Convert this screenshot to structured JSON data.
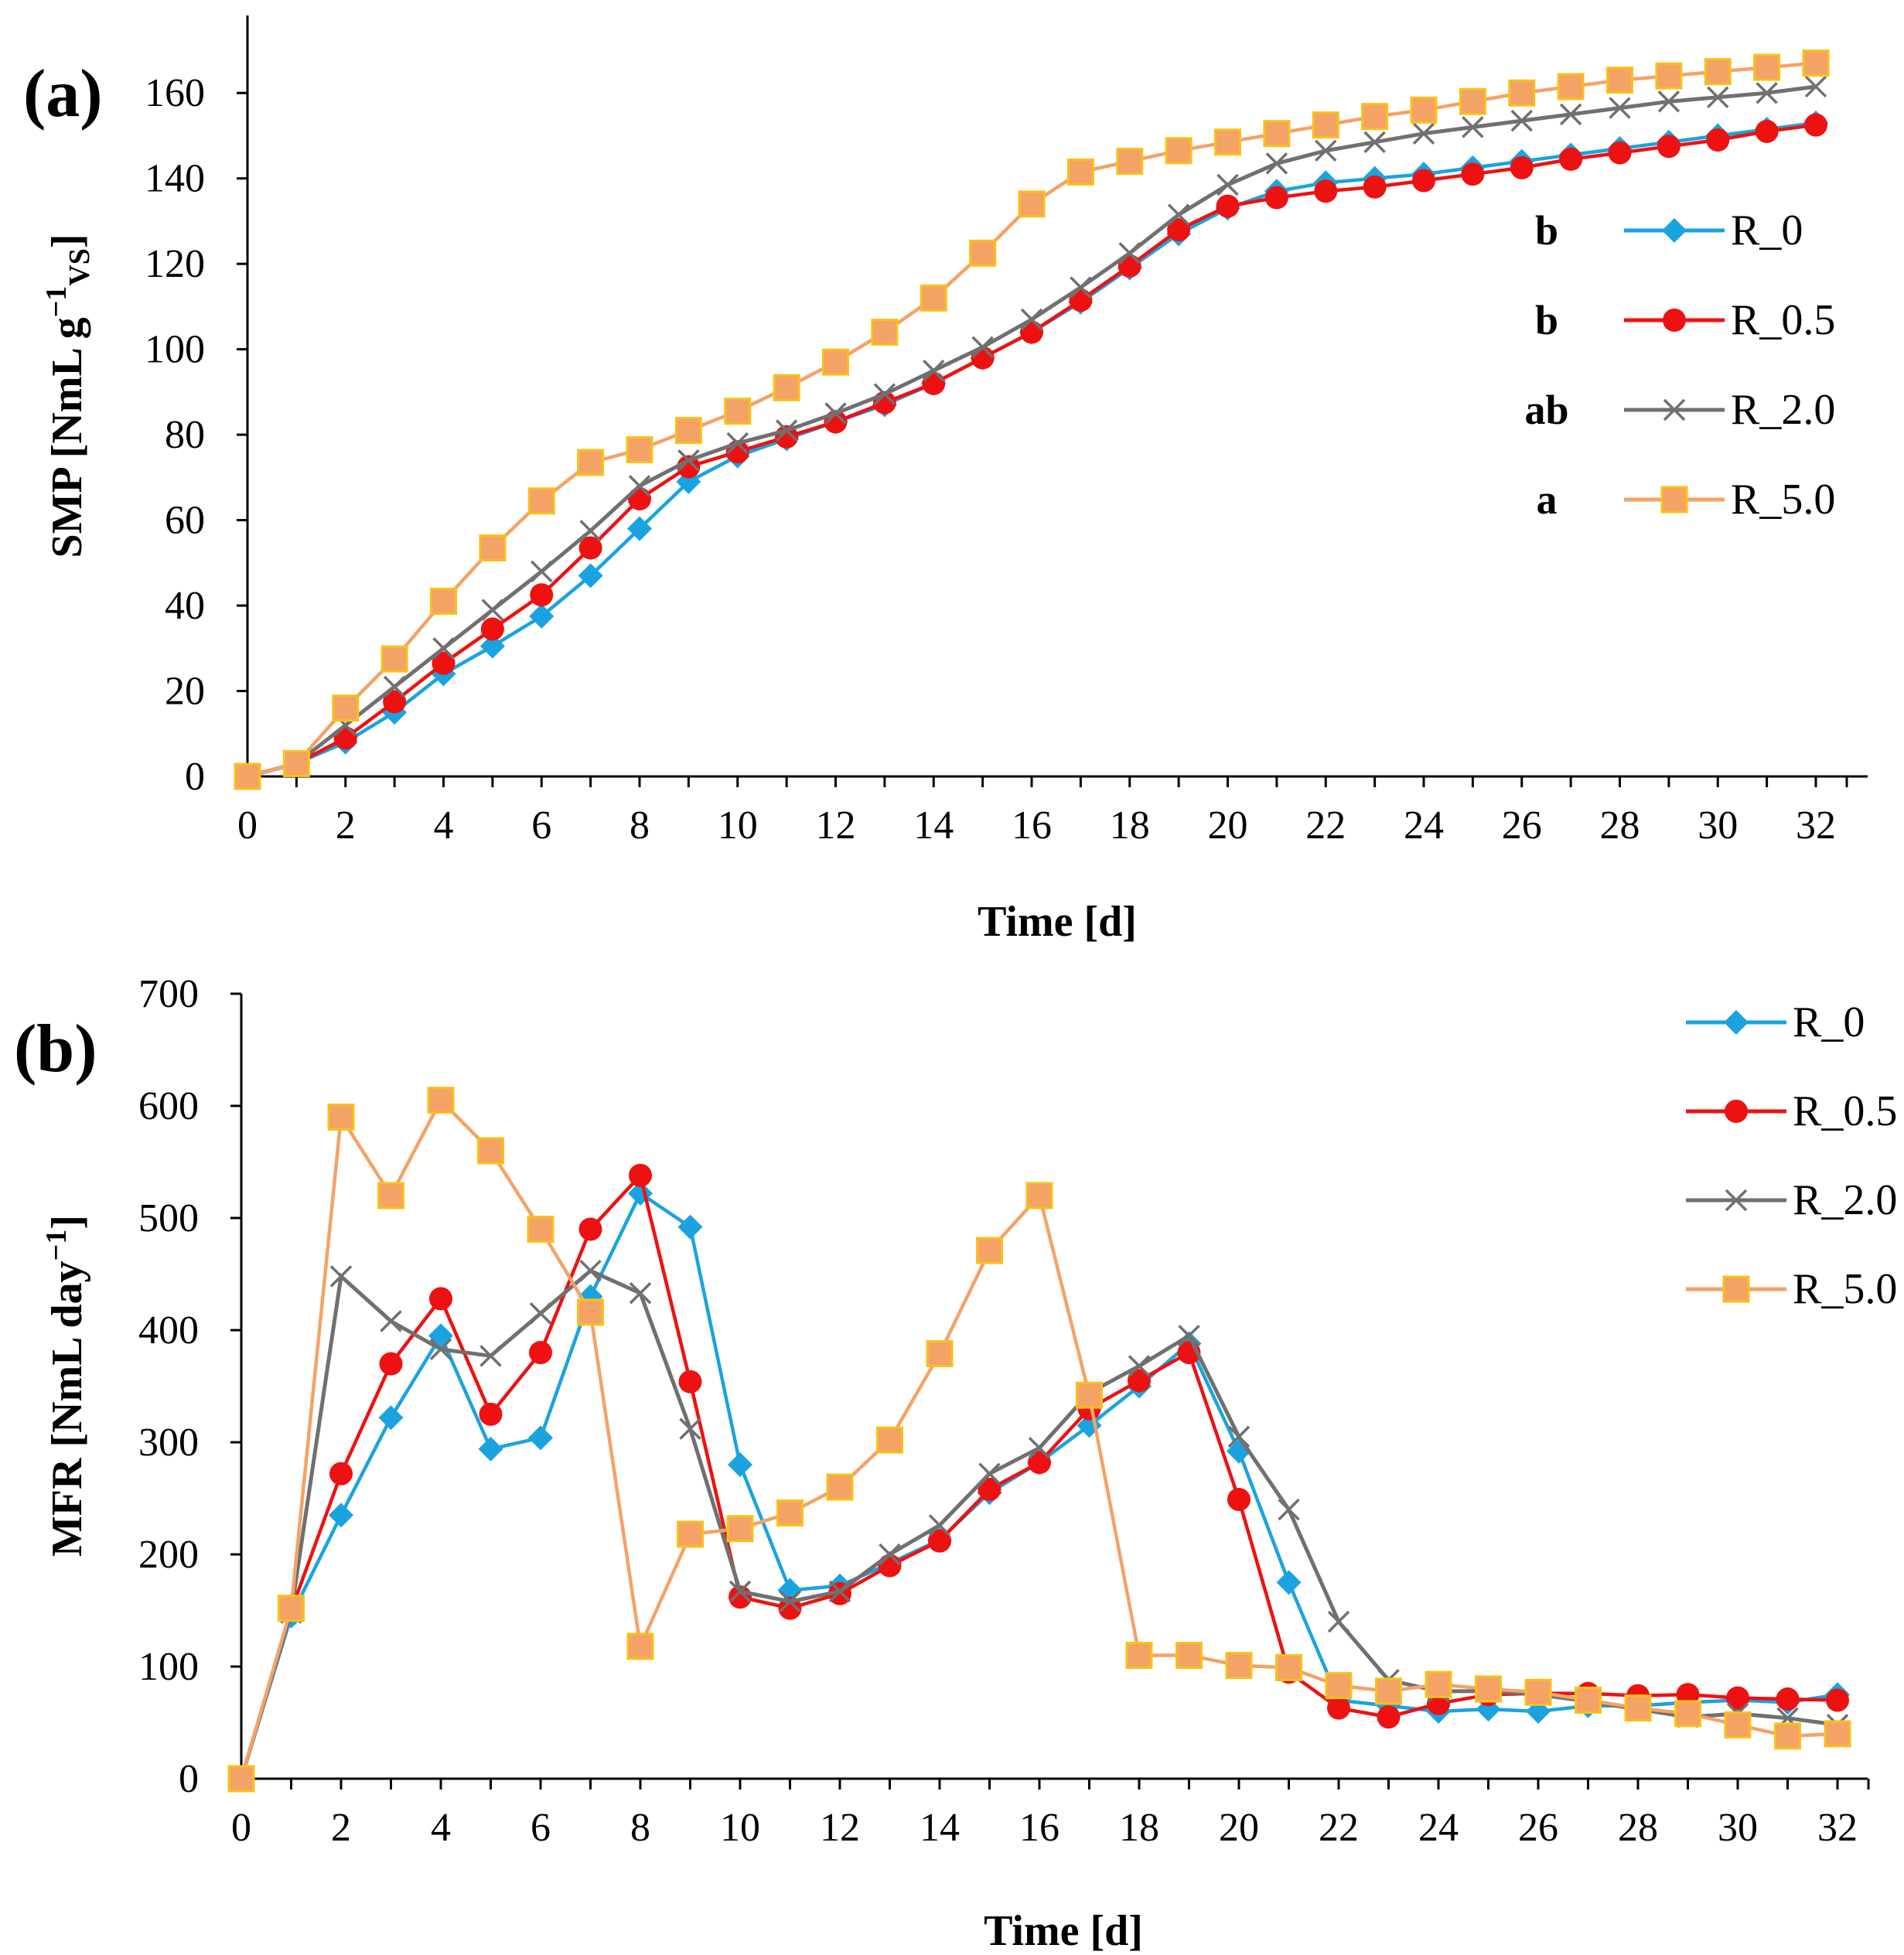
{
  "colors": {
    "R_0": "#1aa3e0",
    "R_0.5": "#ee1111",
    "R_2.0": "#707070",
    "R_5.0": "#f5a266",
    "square_edge": "#f6c21a"
  },
  "chart_data": [
    {
      "panel_label": "(a)",
      "type": "line",
      "xlabel": "Time [d]",
      "ylabel": "SMP [NmL g⁻¹VS]",
      "ylabel_parts": {
        "main": "SMP [NmL g",
        "sup": "−1",
        "sub": "VS",
        "close": "]"
      },
      "xlim": [
        0,
        32
      ],
      "ylim": [
        0,
        170
      ],
      "xticks": [
        0,
        2,
        4,
        6,
        8,
        10,
        12,
        14,
        16,
        18,
        20,
        22,
        24,
        26,
        28,
        30,
        32
      ],
      "yticks": [
        0,
        20,
        40,
        60,
        80,
        100,
        120,
        140,
        160
      ],
      "legend_position": "center-right",
      "series": [
        {
          "name": "R_0",
          "marker": "diamond",
          "significance": "b",
          "x": [
            0,
            1,
            2,
            3,
            4,
            5,
            6,
            7,
            8,
            9,
            10,
            11,
            12,
            13,
            14,
            15,
            16,
            17,
            18,
            19,
            20,
            21,
            22,
            23,
            24,
            25,
            26,
            27,
            28,
            29,
            30,
            31,
            32
          ],
          "values": [
            0,
            3,
            8,
            15,
            24,
            30.5,
            37.5,
            47,
            58,
            69,
            75,
            79,
            83,
            87,
            92,
            98,
            104,
            111,
            119,
            127,
            133,
            137,
            139,
            140,
            141,
            142.5,
            144,
            145.5,
            147,
            148.5,
            150,
            151.5,
            153
          ]
        },
        {
          "name": "R_0.5",
          "marker": "circle",
          "significance": "b",
          "x": [
            0,
            1,
            2,
            3,
            4,
            5,
            6,
            7,
            8,
            9,
            10,
            11,
            12,
            13,
            14,
            15,
            16,
            17,
            18,
            19,
            20,
            21,
            22,
            23,
            24,
            25,
            26,
            27,
            28,
            29,
            30,
            31,
            32
          ],
          "values": [
            0,
            3,
            9,
            17.5,
            26.5,
            34.5,
            42.5,
            53.5,
            65,
            72.5,
            76,
            79.5,
            83,
            87.5,
            92,
            98,
            104,
            111.5,
            119.5,
            128,
            133.5,
            135.5,
            137,
            138,
            139.5,
            141,
            142.5,
            144.5,
            146,
            147.5,
            149,
            151,
            152.5
          ]
        },
        {
          "name": "R_2.0",
          "marker": "x",
          "significance": "ab",
          "x": [
            0,
            1,
            2,
            3,
            4,
            5,
            6,
            7,
            8,
            9,
            10,
            11,
            12,
            13,
            14,
            15,
            16,
            17,
            18,
            19,
            20,
            21,
            22,
            23,
            24,
            25,
            26,
            27,
            28,
            29,
            30,
            31,
            32
          ],
          "values": [
            0,
            3,
            12,
            21,
            30,
            39,
            48,
            57.5,
            68,
            74,
            78,
            81,
            85,
            89.5,
            95,
            100.5,
            107,
            114.5,
            122.5,
            131.5,
            138.5,
            143.5,
            146.5,
            148.5,
            150.5,
            152,
            153.5,
            155,
            156.5,
            158,
            159,
            160,
            161.5
          ]
        },
        {
          "name": "R_5.0",
          "marker": "square",
          "significance": "a",
          "x": [
            0,
            1,
            2,
            3,
            4,
            5,
            6,
            7,
            8,
            9,
            10,
            11,
            12,
            13,
            14,
            15,
            16,
            17,
            18,
            19,
            20,
            21,
            22,
            23,
            24,
            25,
            26,
            27,
            28,
            29,
            30,
            31,
            32
          ],
          "values": [
            0,
            3,
            16,
            27.5,
            41,
            53.5,
            64.5,
            73.5,
            76.5,
            81,
            85.5,
            91,
            97,
            104,
            112,
            122.5,
            134,
            141.5,
            144,
            146.5,
            148.5,
            150.5,
            152.5,
            154.5,
            156,
            158,
            160,
            161.5,
            163,
            164,
            165,
            166,
            167
          ]
        }
      ]
    },
    {
      "panel_label": "(b)",
      "type": "line",
      "xlabel": "Time [d]",
      "ylabel": "MFR [NmL day⁻¹]",
      "ylabel_parts": {
        "main": "MFR [NmL day",
        "sup": "−1",
        "sub": "",
        "close": "]"
      },
      "xlim": [
        0,
        32
      ],
      "ylim": [
        0,
        700
      ],
      "xticks": [
        0,
        2,
        4,
        6,
        8,
        10,
        12,
        14,
        16,
        18,
        20,
        22,
        24,
        26,
        28,
        30,
        32
      ],
      "yticks": [
        0,
        100,
        200,
        300,
        400,
        500,
        600,
        700
      ],
      "legend_position": "top-right",
      "series": [
        {
          "name": "R_0",
          "marker": "diamond",
          "x": [
            0,
            1,
            2,
            3,
            4,
            5,
            6,
            7,
            8,
            9,
            10,
            11,
            12,
            13,
            14,
            15,
            16,
            17,
            18,
            19,
            20,
            21,
            22,
            23,
            24,
            25,
            26,
            27,
            28,
            29,
            30,
            31,
            32
          ],
          "values": [
            0,
            145,
            235,
            322,
            395,
            294,
            304,
            430,
            522,
            492,
            280,
            168,
            172,
            192,
            213,
            255,
            282,
            315,
            350,
            388,
            292,
            175,
            70,
            65,
            60,
            62,
            60,
            65,
            65,
            68,
            70,
            68,
            75
          ]
        },
        {
          "name": "R_0.5",
          "marker": "circle",
          "x": [
            0,
            1,
            2,
            3,
            4,
            5,
            6,
            7,
            8,
            9,
            10,
            11,
            12,
            13,
            14,
            15,
            16,
            17,
            18,
            19,
            20,
            21,
            22,
            23,
            24,
            25,
            26,
            27,
            28,
            29,
            30,
            31,
            32
          ],
          "values": [
            0,
            150,
            272,
            370,
            428,
            325,
            380,
            490,
            538,
            354,
            162,
            152,
            165,
            190,
            212,
            258,
            282,
            330,
            355,
            380,
            249,
            95,
            63,
            55,
            67,
            75,
            76,
            76,
            74,
            75,
            72,
            71,
            70
          ]
        },
        {
          "name": "R_2.0",
          "marker": "x",
          "x": [
            0,
            1,
            2,
            3,
            4,
            5,
            6,
            7,
            8,
            9,
            10,
            11,
            12,
            13,
            14,
            15,
            16,
            17,
            18,
            19,
            20,
            21,
            22,
            23,
            24,
            25,
            26,
            27,
            28,
            29,
            30,
            31,
            32
          ],
          "values": [
            0,
            148,
            448,
            408,
            383,
            377,
            415,
            453,
            433,
            312,
            167,
            158,
            167,
            200,
            226,
            272,
            295,
            344,
            368,
            395,
            305,
            240,
            140,
            88,
            78,
            78,
            75,
            69,
            62,
            55,
            58,
            54,
            48
          ]
        },
        {
          "name": "R_5.0",
          "marker": "square",
          "x": [
            0,
            1,
            2,
            3,
            4,
            5,
            6,
            7,
            8,
            9,
            10,
            11,
            12,
            13,
            14,
            15,
            16,
            17,
            18,
            19,
            20,
            21,
            22,
            23,
            24,
            25,
            26,
            27,
            28,
            29,
            30,
            31,
            32
          ],
          "values": [
            0,
            152,
            590,
            520,
            605,
            560,
            490,
            416,
            118,
            218,
            223,
            237,
            260,
            302,
            379,
            471,
            520,
            342,
            110,
            110,
            101,
            99,
            83,
            78,
            84,
            80,
            77,
            70,
            63,
            58,
            48,
            38,
            40
          ]
        }
      ]
    }
  ]
}
